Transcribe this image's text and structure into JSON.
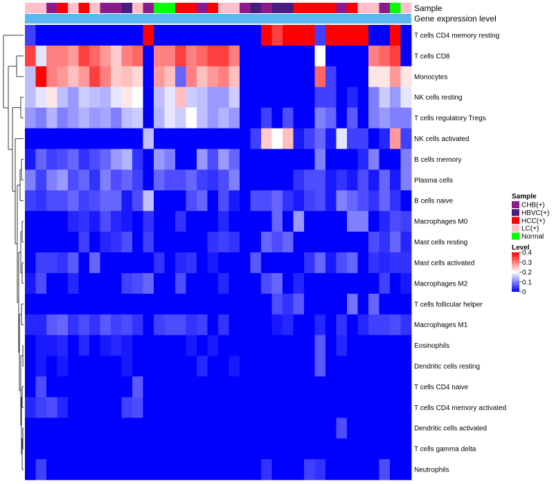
{
  "chart_data": {
    "type": "heatmap",
    "title": "",
    "annotation_titles": {
      "sample": "Sample",
      "gene": "Gene expression level"
    },
    "annotation_colors": {
      "CHB(+)": "#8B1A8B",
      "HBVC(+)": "#4B1C80",
      "HCC(+)": "#FF0000",
      "LC(+)": "#FFC0CB",
      "Normal": "#00FF00",
      "gene_level": "#5BB8F0"
    },
    "sample_groups": [
      "LC(+)",
      "LC(+)",
      "CHB(+)",
      "HCC(+)",
      "LC(+)",
      "HCC(+)",
      "LC(+)",
      "CHB(+)",
      "CHB(+)",
      "HBVC(+)",
      "LC(+)",
      "CHB(+)",
      "Normal",
      "Normal",
      "HCC(+)",
      "HCC(+)",
      "CHB(+)",
      "HCC(+)",
      "LC(+)",
      "LC(+)",
      "CHB(+)",
      "HBVC(+)",
      "CHB(+)",
      "HBVC(+)",
      "HBVC(+)",
      "HCC(+)",
      "HCC(+)",
      "HCC(+)",
      "HCC(+)",
      "CHB(+)",
      "HCC(+)",
      "LC(+)",
      "LC(+)",
      "CHB(+)",
      "Normal",
      "LC(+)"
    ],
    "rows": [
      "T cells CD4 memory resting",
      "T cells CD8",
      "Monocytes",
      "NK cells resting",
      "T cells regulatory  Tregs",
      "NK cells activated",
      "B cells memory",
      "Plasma cells",
      "B cells naive",
      "Macrophages M0",
      "Mast cells resting",
      "Mast cells activated",
      "Macrophages M2",
      "T cells follicular helper",
      "Macrophages M1",
      "Eosinophils",
      "Dendritic cells resting",
      "T cells CD4 naive",
      "T cells CD4 memory activated",
      "Dendritic cells activated",
      "T cells gamma delta",
      "Neutrophils"
    ],
    "values": [
      [
        0.05,
        0,
        0,
        0,
        0,
        0,
        0,
        0,
        0,
        0,
        0,
        0.4,
        0,
        0,
        0,
        0,
        0,
        0,
        0,
        0,
        0,
        0,
        0.4,
        0.35,
        0.4,
        0.4,
        0.4,
        0.05,
        0.4,
        0.4,
        0.4,
        0.4,
        0,
        0,
        0.4,
        0
      ],
      [
        0.35,
        0.18,
        0.3,
        0.3,
        0.28,
        0.35,
        0.32,
        0.28,
        0.24,
        0.3,
        0.32,
        0,
        0.3,
        0.3,
        0.35,
        0.3,
        0.32,
        0.35,
        0.35,
        0.3,
        0,
        0,
        0,
        0,
        0,
        0,
        0,
        0.2,
        0,
        0,
        0,
        0,
        0.3,
        0.32,
        0.35,
        0
      ],
      [
        0.15,
        0.4,
        0.3,
        0.28,
        0.25,
        0.28,
        0.35,
        0.3,
        0.24,
        0.25,
        0.23,
        0,
        0.28,
        0.25,
        0.08,
        0.3,
        0.25,
        0.28,
        0.3,
        0.25,
        0,
        0,
        0,
        0,
        0,
        0,
        0,
        0.32,
        0.05,
        0,
        0,
        0,
        0.22,
        0.22,
        0.28,
        0.22
      ],
      [
        0.15,
        0.18,
        0.22,
        0.15,
        0.12,
        0.16,
        0.15,
        0.14,
        0.18,
        0.22,
        0.2,
        0,
        0.15,
        0.18,
        0.25,
        0.16,
        0.15,
        0.12,
        0.12,
        0.16,
        0,
        0,
        0,
        0,
        0,
        0,
        0,
        0.05,
        0.05,
        0,
        0.03,
        0,
        0.1,
        0.16,
        0.12,
        0.18
      ],
      [
        0.12,
        0.1,
        0.14,
        0.1,
        0.12,
        0.14,
        0.12,
        0.13,
        0.1,
        0.15,
        0.16,
        0,
        0.14,
        0.18,
        0.16,
        0.2,
        0.15,
        0.12,
        0.14,
        0.12,
        0,
        0,
        0.05,
        0,
        0.06,
        0,
        0,
        0.1,
        0.08,
        0,
        0.07,
        0,
        0.1,
        0.12,
        0.1,
        0.1
      ],
      [
        0,
        0,
        0,
        0,
        0,
        0,
        0,
        0,
        0,
        0,
        0,
        0.15,
        0,
        0,
        0,
        0,
        0,
        0,
        0,
        0,
        0,
        0.05,
        0.24,
        0.2,
        0.25,
        0.02,
        0.05,
        0.08,
        0.02,
        0.18,
        0.05,
        0.05,
        0,
        0.03,
        0.28,
        0.05
      ],
      [
        0.02,
        0.08,
        0.05,
        0.06,
        0.08,
        0.04,
        0.06,
        0.08,
        0.12,
        0.14,
        0.04,
        0,
        0.12,
        0.1,
        0,
        0,
        0.12,
        0.06,
        0.12,
        0.08,
        0,
        0,
        0,
        0,
        0,
        0,
        0,
        0.1,
        0,
        0,
        0,
        0.03,
        0.1,
        0,
        0,
        0.1
      ],
      [
        0.1,
        0.05,
        0.1,
        0.12,
        0.06,
        0.08,
        0.04,
        0.1,
        0.06,
        0.08,
        0.05,
        0,
        0.08,
        0.06,
        0.06,
        0.08,
        0.05,
        0.04,
        0.06,
        0.1,
        0,
        0,
        0,
        0,
        0,
        0.04,
        0.06,
        0.06,
        0.02,
        0.04,
        0.02,
        0.06,
        0.02,
        0.08,
        0.02,
        0.1
      ],
      [
        0.05,
        0.04,
        0.06,
        0.06,
        0.08,
        0.05,
        0.06,
        0.08,
        0.08,
        0.02,
        0.06,
        0.15,
        0,
        0,
        0,
        0.06,
        0.08,
        0,
        0.06,
        0.02,
        0,
        0.06,
        0.06,
        0.08,
        0.04,
        0.02,
        0.05,
        0.06,
        0.02,
        0.1,
        0.08,
        0.06,
        0.04,
        0.08,
        0.04,
        0
      ],
      [
        0,
        0,
        0,
        0,
        0.03,
        0.04,
        0.02,
        0.06,
        0.03,
        0.02,
        0,
        0.04,
        0,
        0,
        0.04,
        0,
        0,
        0,
        0.03,
        0,
        0,
        0,
        0,
        0.08,
        0,
        0.12,
        0,
        0,
        0,
        0,
        0.1,
        0.1,
        0,
        0.03,
        0.06,
        0.05
      ],
      [
        0,
        0,
        0,
        0,
        0,
        0.05,
        0,
        0.03,
        0.04,
        0.06,
        0,
        0.05,
        0,
        0,
        0,
        0,
        0,
        0.04,
        0.05,
        0.04,
        0,
        0,
        0.08,
        0.06,
        0.08,
        0,
        0,
        0,
        0,
        0,
        0,
        0,
        0.06,
        0.04,
        0.08,
        0.03
      ],
      [
        0,
        0.05,
        0.05,
        0.04,
        0.07,
        0,
        0.08,
        0,
        0,
        0,
        0,
        0,
        0.04,
        0,
        0.03,
        0.04,
        0,
        0.02,
        0,
        0,
        0,
        0.07,
        0,
        0,
        0,
        0,
        0.04,
        0.08,
        0.02,
        0.06,
        0.08,
        0,
        0.04,
        0.03,
        0.04,
        0.04
      ],
      [
        0.02,
        0.06,
        0,
        0,
        0.03,
        0,
        0,
        0,
        0,
        0.05,
        0.06,
        0.08,
        0,
        0,
        0.06,
        0,
        0,
        0,
        0.03,
        0,
        0,
        0,
        0.06,
        0.08,
        0,
        0.03,
        0,
        0,
        0,
        0,
        0,
        0,
        0,
        0.05,
        0,
        0.02
      ],
      [
        0,
        0,
        0,
        0,
        0,
        0,
        0,
        0,
        0,
        0,
        0,
        0,
        0,
        0,
        0,
        0,
        0,
        0,
        0,
        0,
        0,
        0,
        0,
        0.06,
        0.04,
        0.07,
        0,
        0,
        0,
        0,
        0.09,
        0,
        0.08,
        0,
        0,
        0
      ],
      [
        0.03,
        0.03,
        0.07,
        0.08,
        0.04,
        0.06,
        0.04,
        0.07,
        0.05,
        0.06,
        0.04,
        0,
        0.05,
        0.06,
        0.06,
        0.04,
        0.05,
        0,
        0.04,
        0,
        0,
        0,
        0,
        0.02,
        0.03,
        0,
        0,
        0.03,
        0,
        0.04,
        0,
        0.03,
        0.05,
        0.05,
        0.06,
        0.04
      ],
      [
        0,
        0.02,
        0.02,
        0.03,
        0,
        0.03,
        0,
        0.02,
        0.03,
        0.02,
        0,
        0,
        0,
        0,
        0,
        0.02,
        0,
        0.02,
        0,
        0,
        0,
        0,
        0,
        0,
        0,
        0,
        0,
        0.07,
        0,
        0.03,
        0,
        0,
        0,
        0,
        0,
        0
      ],
      [
        0,
        0.02,
        0,
        0.02,
        0,
        0,
        0,
        0,
        0,
        0.02,
        0,
        0,
        0,
        0,
        0,
        0,
        0.03,
        0,
        0,
        0.02,
        0,
        0,
        0,
        0,
        0,
        0,
        0,
        0.07,
        0,
        0,
        0,
        0,
        0,
        0,
        0,
        0
      ],
      [
        0,
        0.06,
        0,
        0,
        0,
        0,
        0,
        0,
        0,
        0,
        0.07,
        0,
        0,
        0,
        0,
        0,
        0,
        0,
        0,
        0,
        0,
        0,
        0,
        0,
        0,
        0,
        0,
        0,
        0,
        0,
        0,
        0,
        0,
        0,
        0,
        0
      ],
      [
        0.03,
        0.05,
        0.06,
        0.03,
        0,
        0,
        0,
        0,
        0,
        0.05,
        0.06,
        0,
        0,
        0,
        0,
        0,
        0,
        0,
        0,
        0,
        0,
        0,
        0,
        0,
        0,
        0,
        0,
        0,
        0,
        0,
        0,
        0,
        0,
        0,
        0,
        0
      ],
      [
        0,
        0,
        0,
        0,
        0,
        0,
        0,
        0,
        0,
        0,
        0,
        0,
        0,
        0,
        0,
        0,
        0,
        0,
        0,
        0,
        0,
        0,
        0,
        0,
        0,
        0,
        0,
        0,
        0,
        0.06,
        0,
        0,
        0,
        0,
        0,
        0
      ],
      [
        0,
        0,
        0,
        0,
        0,
        0,
        0,
        0,
        0,
        0,
        0,
        0,
        0,
        0,
        0,
        0,
        0,
        0,
        0,
        0,
        0,
        0,
        0,
        0,
        0,
        0,
        0,
        0,
        0,
        0,
        0,
        0,
        0,
        0,
        0,
        0
      ],
      [
        0,
        0.05,
        0,
        0,
        0,
        0,
        0,
        0,
        0,
        0,
        0,
        0,
        0,
        0,
        0,
        0,
        0,
        0,
        0,
        0,
        0,
        0,
        0.04,
        0,
        0,
        0,
        0.05,
        0.04,
        0,
        0,
        0,
        0,
        0,
        0.06,
        0,
        0
      ]
    ],
    "legend": {
      "sample_title": "Sample",
      "sample_items": [
        "CHB(+)",
        "HBVC(+)",
        "HCC(+)",
        "LC(+)",
        "Normal"
      ],
      "level_title": "Level",
      "level_ticks": [
        "0.4",
        "0.3",
        "0.2",
        "0.1",
        "0"
      ],
      "level_range": [
        0,
        0.4
      ]
    },
    "dendrogram": "row",
    "legend_placement": "right"
  }
}
